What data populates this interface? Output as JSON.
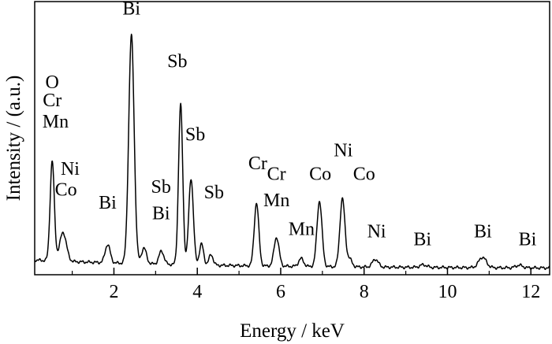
{
  "chart_data": {
    "type": "line",
    "xlabel": "Energy / keV",
    "ylabel": "Intensity / (a.u.)",
    "xlim": [
      0.1,
      12.45
    ],
    "ylim": [
      0,
      100
    ],
    "x_ticks": [
      2,
      4,
      6,
      8,
      10,
      12
    ],
    "y_ticks_shown": false,
    "grid": false,
    "legend": "none",
    "series": [
      {
        "line_color": "#000000",
        "peaks": [
          {
            "x": 0.52,
            "height": 38,
            "width": 0.05
          },
          {
            "x": 0.78,
            "height": 11,
            "width": 0.08
          },
          {
            "x": 1.85,
            "height": 7,
            "width": 0.06
          },
          {
            "x": 2.42,
            "height": 87,
            "width": 0.065
          },
          {
            "x": 2.72,
            "height": 6,
            "width": 0.06
          },
          {
            "x": 3.14,
            "height": 5,
            "width": 0.06
          },
          {
            "x": 3.6,
            "height": 61,
            "width": 0.05
          },
          {
            "x": 3.85,
            "height": 33,
            "width": 0.055
          },
          {
            "x": 4.1,
            "height": 8,
            "width": 0.05
          },
          {
            "x": 4.33,
            "height": 4,
            "width": 0.05
          },
          {
            "x": 5.42,
            "height": 24,
            "width": 0.055
          },
          {
            "x": 5.9,
            "height": 11,
            "width": 0.06
          },
          {
            "x": 6.49,
            "height": 3,
            "width": 0.06
          },
          {
            "x": 6.93,
            "height": 25,
            "width": 0.06
          },
          {
            "x": 7.48,
            "height": 26,
            "width": 0.06
          },
          {
            "x": 7.65,
            "height": 3,
            "width": 0.06
          },
          {
            "x": 8.27,
            "height": 3,
            "width": 0.07
          },
          {
            "x": 9.42,
            "height": 1,
            "width": 0.08
          },
          {
            "x": 10.84,
            "height": 4,
            "width": 0.09
          },
          {
            "x": 11.72,
            "height": 1,
            "width": 0.08
          }
        ]
      }
    ],
    "annotations": [
      {
        "text": "O",
        "x": 0.52,
        "y": 70
      },
      {
        "text": "Cr",
        "x": 0.52,
        "y": 63
      },
      {
        "text": "Mn",
        "x": 0.6,
        "y": 55
      },
      {
        "text": "Ni",
        "x": 0.95,
        "y": 37
      },
      {
        "text": "Co",
        "x": 0.85,
        "y": 29
      },
      {
        "text": "Bi",
        "x": 1.85,
        "y": 24
      },
      {
        "text": "Bi",
        "x": 2.42,
        "y": 98
      },
      {
        "text": "Sb",
        "x": 3.13,
        "y": 30
      },
      {
        "text": "Bi",
        "x": 3.13,
        "y": 20
      },
      {
        "text": "Sb",
        "x": 3.52,
        "y": 78
      },
      {
        "text": "Sb",
        "x": 3.95,
        "y": 50
      },
      {
        "text": "Sb",
        "x": 4.4,
        "y": 28
      },
      {
        "text": "Cr",
        "x": 5.45,
        "y": 39
      },
      {
        "text": "Cr",
        "x": 5.9,
        "y": 35
      },
      {
        "text": "Mn",
        "x": 5.9,
        "y": 25
      },
      {
        "text": "Mn",
        "x": 6.5,
        "y": 14
      },
      {
        "text": "Co",
        "x": 6.95,
        "y": 35
      },
      {
        "text": "Ni",
        "x": 7.5,
        "y": 44
      },
      {
        "text": "Co",
        "x": 8.0,
        "y": 35
      },
      {
        "text": "Ni",
        "x": 8.3,
        "y": 13
      },
      {
        "text": "Bi",
        "x": 9.4,
        "y": 10
      },
      {
        "text": "Bi",
        "x": 10.85,
        "y": 13
      },
      {
        "text": "Bi",
        "x": 11.92,
        "y": 10
      }
    ]
  }
}
